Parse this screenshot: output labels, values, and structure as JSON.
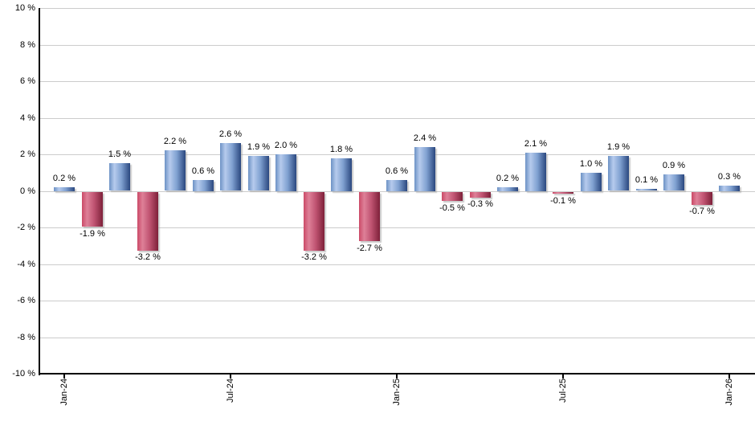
{
  "chart_data": {
    "type": "bar",
    "title": "",
    "xlabel": "",
    "ylabel": "",
    "grid": true,
    "legend": false,
    "ylim": [
      -10,
      10
    ],
    "y_step": 2,
    "y_axis_labels": [
      "10 %",
      "8 %",
      "6 %",
      "4 %",
      "2 %",
      "0 %",
      "-2 %",
      "-4 %",
      "-6 %",
      "-8 %",
      "-10 %"
    ],
    "x_tick_labels": [
      "Jan-24",
      "Jul-24",
      "Jan-25",
      "Jul-25",
      "Jan-26"
    ],
    "x_tick_indices": [
      0,
      6,
      12,
      18,
      24
    ],
    "values": [
      0.2,
      -1.9,
      1.5,
      -3.2,
      2.2,
      0.6,
      2.6,
      1.9,
      2.0,
      -3.2,
      1.8,
      -2.7,
      0.6,
      2.4,
      -0.5,
      -0.3,
      0.2,
      2.1,
      -0.1,
      1.0,
      1.9,
      0.1,
      0.9,
      -0.7,
      0.3
    ],
    "bar_labels": [
      "0.2 %",
      "-1.9 %",
      "1.5 %",
      "-3.2 %",
      "2.2 %",
      "0.6 %",
      "2.6 %",
      "1.9 %",
      "2.0 %",
      "-3.2 %",
      "1.8 %",
      "-2.7 %",
      "0.6 %",
      "2.4 %",
      "-0.5 %",
      "-0.3 %",
      "0.2 %",
      "2.1 %",
      "-0.1 %",
      "1.0 %",
      "1.9 %",
      "0.1 %",
      "0.9 %",
      "-0.7 %",
      "0.3 %"
    ],
    "colors": {
      "positive_bar_gradient": [
        "#6d92c5",
        "#b6cbed",
        "#80a1d1",
        "#2a477f"
      ],
      "negative_bar_gradient": [
        "#cb4a67",
        "#de8098",
        "#c05472",
        "#7e2039"
      ],
      "gridline": "#cccccc",
      "axis": "#000000",
      "label_text": "#000000",
      "background": "#ffffff"
    }
  }
}
